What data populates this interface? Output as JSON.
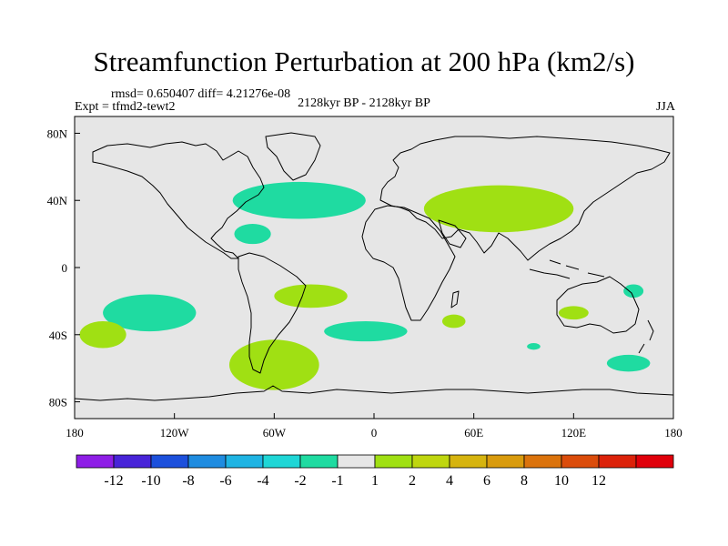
{
  "title": "Streamfunction Perturbation at 200 hPa (km2/s)",
  "stats": "rmsd= 0.650407 diff= 4.21276e-08",
  "experiment": "Expt = tfmd2-tewt2",
  "period": "2128kyr BP - 2128kyr BP",
  "season": "JJA",
  "map": {
    "projection": "cylindrical-equidistant",
    "lon_range": [
      -180,
      180
    ],
    "lat_range": [
      -90,
      90
    ],
    "background_color": "#e6e6e6",
    "coastline_color": "#000000",
    "lat_labels": [
      {
        "lat": 80,
        "label": "80N"
      },
      {
        "lat": 40,
        "label": "40N"
      },
      {
        "lat": 0,
        "label": "0"
      },
      {
        "lat": -40,
        "label": "40S"
      },
      {
        "lat": -80,
        "label": "80S"
      }
    ],
    "lon_labels": [
      {
        "lon": -180,
        "label": "180"
      },
      {
        "lon": -120,
        "label": "120W"
      },
      {
        "lon": -60,
        "label": "60W"
      },
      {
        "lon": 0,
        "label": "0"
      },
      {
        "lon": 60,
        "label": "60E"
      },
      {
        "lon": 120,
        "label": "120E"
      },
      {
        "lon": 180,
        "label": "180"
      }
    ],
    "anomalies": [
      {
        "name": "north-atlantic-negative",
        "sign": "negative",
        "color": "#1fdba1",
        "lon": -45,
        "lat": 40,
        "rx": 40,
        "ry": 11
      },
      {
        "name": "caribbean-negative",
        "sign": "negative",
        "color": "#1fdba1",
        "lon": -73,
        "lat": 20,
        "rx": 11,
        "ry": 6
      },
      {
        "name": "eurasia-positive",
        "sign": "positive",
        "color": "#a0e013",
        "lon": 75,
        "lat": 35,
        "rx": 45,
        "ry": 14
      },
      {
        "name": "south-pacific-negative",
        "sign": "negative",
        "color": "#1fdba1",
        "lon": -135,
        "lat": -27,
        "rx": 28,
        "ry": 11
      },
      {
        "name": "south-america-positive",
        "sign": "positive",
        "color": "#a0e013",
        "lon": -38,
        "lat": -17,
        "rx": 22,
        "ry": 7
      },
      {
        "name": "far-south-pacific-positive",
        "sign": "positive",
        "color": "#a0e013",
        "lon": -163,
        "lat": -40,
        "rx": 14,
        "ry": 8
      },
      {
        "name": "south-atlantic-negative",
        "sign": "negative",
        "color": "#1fdba1",
        "lon": -5,
        "lat": -38,
        "rx": 25,
        "ry": 6
      },
      {
        "name": "southern-ocean-positive",
        "sign": "positive",
        "color": "#a0e013",
        "lon": -60,
        "lat": -58,
        "rx": 27,
        "ry": 15
      },
      {
        "name": "madagascar-positive",
        "sign": "positive",
        "color": "#a0e013",
        "lon": 48,
        "lat": -32,
        "rx": 7,
        "ry": 4
      },
      {
        "name": "australia-positive",
        "sign": "positive",
        "color": "#a0e013",
        "lon": 120,
        "lat": -27,
        "rx": 9,
        "ry": 4
      },
      {
        "name": "coral-sea-negative",
        "sign": "negative",
        "color": "#1fdba1",
        "lon": 156,
        "lat": -14,
        "rx": 6,
        "ry": 4
      },
      {
        "name": "indian-ocean-negative",
        "sign": "negative",
        "color": "#1fdba1",
        "lon": 96,
        "lat": -47,
        "rx": 4,
        "ry": 2
      },
      {
        "name": "tasman-negative",
        "sign": "negative",
        "color": "#1fdba1",
        "lon": 153,
        "lat": -57,
        "rx": 13,
        "ry": 5
      }
    ]
  },
  "colorbar": {
    "colors": [
      "#8e1ee6",
      "#4824d8",
      "#1c50dc",
      "#1f8ce0",
      "#1fb4e3",
      "#1fd6d6",
      "#1fdba1",
      "#e6e6e6",
      "#a0e013",
      "#bfd60f",
      "#d6b40f",
      "#d99b0d",
      "#db730c",
      "#db4c0b",
      "#dc220a",
      "#e0000b"
    ],
    "labels": [
      "-12",
      "-10",
      "-8",
      "-6",
      "-4",
      "-2",
      "-1",
      "1",
      "2",
      "4",
      "6",
      "8",
      "10",
      "12"
    ]
  }
}
